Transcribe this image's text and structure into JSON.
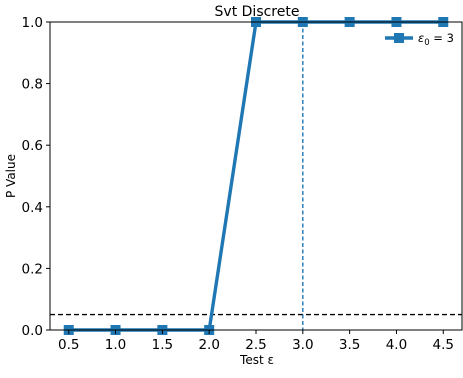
{
  "chart_data": {
    "type": "line",
    "title": "Svt Discrete",
    "xlabel": "Test ε",
    "ylabel": "P Value",
    "xlim": [
      0.3,
      4.7
    ],
    "ylim": [
      0.0,
      1.0
    ],
    "x_ticks": [
      "0.5",
      "1.0",
      "1.5",
      "2.0",
      "2.5",
      "3.0",
      "3.5",
      "4.0",
      "4.5"
    ],
    "y_ticks": [
      "0.0",
      "0.2",
      "0.4",
      "0.6",
      "0.8",
      "1.0"
    ],
    "grid": false,
    "legend_position": "top-right",
    "series": [
      {
        "name": "ε₀ = 3",
        "legend_parts": {
          "base": "ε",
          "sub": "0",
          "rest": " = 3"
        },
        "color": "#1f77b4",
        "marker": "square",
        "x": [
          0.5,
          1.0,
          1.5,
          2.0,
          2.5,
          3.0,
          3.5,
          4.0,
          4.5
        ],
        "y": [
          0.0,
          0.0,
          0.0,
          0.0,
          1.0,
          1.0,
          1.0,
          1.0,
          1.0
        ]
      }
    ],
    "reference_lines": [
      {
        "orientation": "horizontal",
        "value": 0.05,
        "style": "dashed",
        "color": "#000000"
      },
      {
        "orientation": "vertical",
        "value": 3.0,
        "style": "dashed",
        "color": "#1f77b4"
      }
    ]
  }
}
